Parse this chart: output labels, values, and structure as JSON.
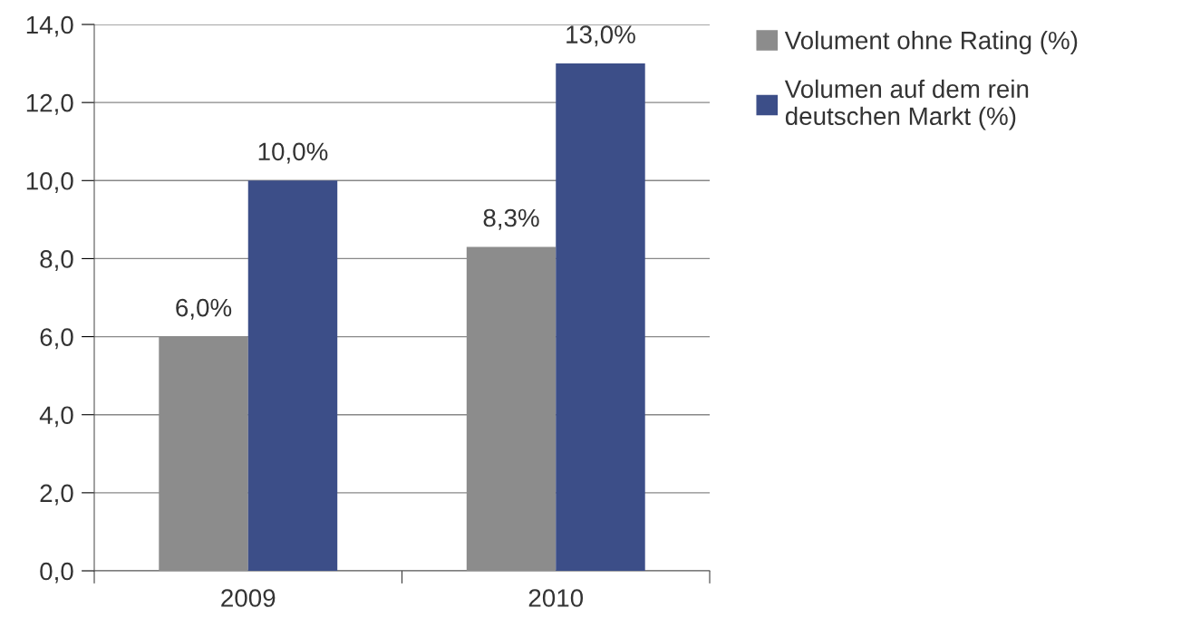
{
  "chart_data": {
    "type": "bar",
    "categories": [
      "2009",
      "2010"
    ],
    "series": [
      {
        "name": "Volument ohne Rating (%)",
        "color": "#8c8c8c",
        "values": [
          6.0,
          8.3
        ],
        "value_labels": [
          "6,0%",
          "8,3%"
        ]
      },
      {
        "name": "Volumen auf dem rein\ndeutschen Markt (%)",
        "color": "#3c4e88",
        "values": [
          10.0,
          13.0
        ],
        "value_labels": [
          "10,0%",
          "13,0%"
        ]
      }
    ],
    "ylim": [
      0,
      14
    ],
    "yticks": [
      {
        "value": 0,
        "label": "0,0"
      },
      {
        "value": 2,
        "label": "2,0"
      },
      {
        "value": 4,
        "label": "4,0"
      },
      {
        "value": 6,
        "label": "6,0"
      },
      {
        "value": 8,
        "label": "8,0"
      },
      {
        "value": 10,
        "label": "10,0"
      },
      {
        "value": 12,
        "label": "12,0"
      },
      {
        "value": 14,
        "label": "14,0"
      }
    ],
    "grid": "y",
    "legend": "top right"
  }
}
